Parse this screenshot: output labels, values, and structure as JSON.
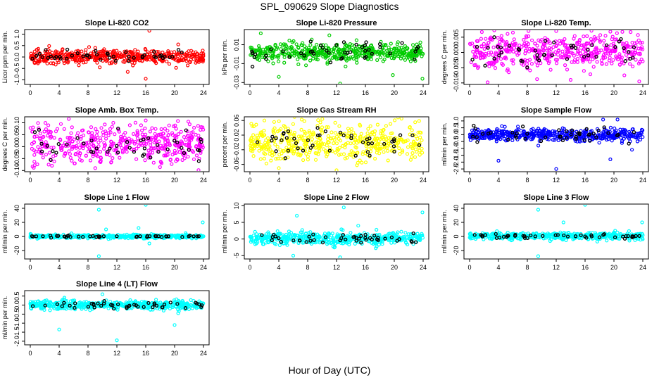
{
  "figure": {
    "title": "SPL_090629  Slope Diagnostics",
    "xlabel": "Hour of Day (UTC)"
  },
  "chart_data": [
    {
      "type": "scatter",
      "title": "Slope Li-820 CO2",
      "ylabel": "Licor ppm per min.",
      "color": "#ff0000",
      "xlim": [
        0,
        24
      ],
      "ylim": [
        -1.2,
        1.2
      ],
      "xticks": [
        "0",
        "4",
        "8",
        "12",
        "16",
        "20",
        "24"
      ],
      "yticks": [
        "-1.0",
        "-0.5",
        "0.0",
        "0.5",
        "1.0"
      ],
      "center": 0.02,
      "spread": 0.14,
      "black_spread": 0.12,
      "outliers": [
        [
          13.5,
          -0.65
        ],
        [
          16.0,
          -0.95
        ],
        [
          16.5,
          1.15
        ],
        [
          9.0,
          0.4
        ],
        [
          20.5,
          0.55
        ]
      ]
    },
    {
      "type": "scatter",
      "title": "Slope Li-820 Pressure",
      "ylabel": "kPa per min.",
      "color": "#00cc00",
      "xlim": [
        0,
        24
      ],
      "ylim": [
        -0.032,
        0.026
      ],
      "xticks": [
        "0",
        "4",
        "8",
        "12",
        "16",
        "20",
        "24"
      ],
      "yticks": [
        "-0.03",
        "-0.01",
        "0.01"
      ],
      "center": 0.002,
      "spread": 0.005,
      "black_spread": 0.008,
      "outliers": [
        [
          4.0,
          -0.024
        ],
        [
          12.5,
          -0.031
        ],
        [
          23.9,
          -0.026
        ],
        [
          19.8,
          -0.022
        ],
        [
          1.5,
          0.022
        ],
        [
          11.0,
          0.02
        ]
      ]
    },
    {
      "type": "scatter",
      "title": "Slope Li-820 Temp.",
      "ylabel": "degrees C per min.",
      "color": "#ff00ff",
      "xlim": [
        0,
        24
      ],
      "ylim": [
        -0.0105,
        0.0075
      ],
      "xticks": [
        "0",
        "4",
        "8",
        "12",
        "16",
        "20",
        "24"
      ],
      "yticks": [
        "-0.010",
        "-0.005",
        "0.000",
        "0.005"
      ],
      "center": 0.0005,
      "spread": 0.0028,
      "black_spread": 0.0022,
      "outliers": [
        [
          2.5,
          -0.0098
        ],
        [
          6.0,
          0.0065
        ],
        [
          12.0,
          0.007
        ],
        [
          14.0,
          -0.009
        ],
        [
          23.5,
          -0.0095
        ],
        [
          19.5,
          0.0068
        ]
      ]
    },
    {
      "type": "scatter",
      "title": "Slope Amb. Box Temp.",
      "ylabel": "degrees C per min.",
      "color": "#ff00ff",
      "xlim": [
        0,
        24
      ],
      "ylim": [
        -0.105,
        0.125
      ],
      "xticks": [
        "0",
        "4",
        "8",
        "12",
        "16",
        "20",
        "24"
      ],
      "yticks": [
        "-0.10",
        "-0.05",
        "0.00",
        "0.05",
        "0.10"
      ],
      "center": 0.01,
      "spread": 0.04,
      "black_spread": 0.03,
      "outliers": [
        [
          16.0,
          0.11
        ],
        [
          9.0,
          -0.09
        ],
        [
          11.5,
          0.1
        ],
        [
          3.0,
          -0.08
        ]
      ]
    },
    {
      "type": "scatter",
      "title": "Slope Gas Stream RH",
      "ylabel": "percent per min.",
      "color": "#ffff00",
      "xlim": [
        0,
        24
      ],
      "ylim": [
        -0.08,
        0.07
      ],
      "xticks": [
        "0",
        "4",
        "8",
        "12",
        "16",
        "20",
        "24"
      ],
      "yticks": [
        "-0.06",
        "-0.02",
        "0.02",
        "0.06"
      ],
      "center": 0.0,
      "spread": 0.026,
      "black_spread": 0.02,
      "outliers": [
        [
          12.0,
          -0.076
        ],
        [
          4.0,
          -0.07
        ],
        [
          21.0,
          0.065
        ],
        [
          2.0,
          0.06
        ]
      ]
    },
    {
      "type": "scatter",
      "title": "Slope Sample Flow",
      "ylabel": "ml/min per min.",
      "color": "#0000ff",
      "xlim": [
        0,
        24
      ],
      "ylim": [
        -2.7,
        1.3
      ],
      "xticks": [
        "0",
        "4",
        "8",
        "12",
        "16",
        "20",
        "24"
      ],
      "yticks": [
        "-2.5",
        "-2.0",
        "-1.5",
        "-1.0",
        "-0.5",
        "0.0",
        "0.5",
        "1.0"
      ],
      "center": 0.0,
      "spread": 0.22,
      "black_spread": 0.3,
      "outliers": [
        [
          4.0,
          -1.9
        ],
        [
          12.0,
          -2.5
        ],
        [
          19.5,
          -1.8
        ],
        [
          18.5,
          1.1
        ],
        [
          20.5,
          1.1
        ],
        [
          22.5,
          -1.1
        ]
      ]
    },
    {
      "type": "scatter",
      "title": "Slope Line 1 Flow",
      "ylabel": "ml/min per min.",
      "color": "#00ffff",
      "xlim": [
        0,
        24
      ],
      "ylim": [
        -32,
        46
      ],
      "xticks": [
        "0",
        "4",
        "8",
        "12",
        "16",
        "20",
        "24"
      ],
      "yticks": [
        "-20",
        "0",
        "20",
        "40"
      ],
      "center": 0.0,
      "spread": 1.2,
      "black_spread": 0.6,
      "outliers": [
        [
          9.5,
          38
        ],
        [
          16.0,
          45
        ],
        [
          23.9,
          20
        ],
        [
          9.5,
          -28
        ],
        [
          10.5,
          10
        ],
        [
          15.0,
          12
        ],
        [
          16.5,
          -10
        ]
      ]
    },
    {
      "type": "scatter",
      "title": "Slope Line 2 Flow",
      "ylabel": "ml/min per min.",
      "color": "#00ffff",
      "xlim": [
        0,
        24
      ],
      "ylim": [
        -6,
        10.5
      ],
      "xticks": [
        "0",
        "4",
        "8",
        "12",
        "16",
        "20",
        "24"
      ],
      "yticks": [
        "-5",
        "0",
        "5",
        "10"
      ],
      "center": 0.2,
      "spread": 0.9,
      "black_spread": 0.9,
      "outliers": [
        [
          6.5,
          7
        ],
        [
          13.0,
          9.5
        ],
        [
          23.9,
          8
        ],
        [
          12.5,
          -5.5
        ],
        [
          6.0,
          -5
        ],
        [
          15.0,
          4
        ]
      ]
    },
    {
      "type": "scatter",
      "title": "Slope Line 3 Flow",
      "ylabel": "ml/min per min.",
      "color": "#00ffff",
      "xlim": [
        0,
        24
      ],
      "ylim": [
        -32,
        46
      ],
      "xticks": [
        "0",
        "4",
        "8",
        "12",
        "16",
        "20",
        "24"
      ],
      "yticks": [
        "-20",
        "0",
        "20",
        "40"
      ],
      "center": 0.5,
      "spread": 2.5,
      "black_spread": 1.5,
      "outliers": [
        [
          9.5,
          38
        ],
        [
          16.0,
          45
        ],
        [
          23.9,
          20
        ],
        [
          9.5,
          -28
        ],
        [
          13.0,
          20
        ]
      ]
    },
    {
      "type": "scatter",
      "title": "Slope Line 4 (LT) Flow",
      "ylabel": "ml/min per min.",
      "color": "#00ffff",
      "xlim": [
        0,
        24
      ],
      "ylim": [
        -2.2,
        0.8
      ],
      "xticks": [
        "0",
        "4",
        "8",
        "12",
        "16",
        "20",
        "24"
      ],
      "yticks": [
        "-2.0",
        "-1.5",
        "-1.0",
        "-0.5",
        "0.0",
        "0.5"
      ],
      "center": 0.0,
      "spread": 0.12,
      "black_spread": 0.1,
      "outliers": [
        [
          4.0,
          -1.35
        ],
        [
          12.0,
          -1.95
        ],
        [
          20.0,
          -1.1
        ],
        [
          10.0,
          0.6
        ],
        [
          20.5,
          -0.45
        ]
      ]
    }
  ]
}
